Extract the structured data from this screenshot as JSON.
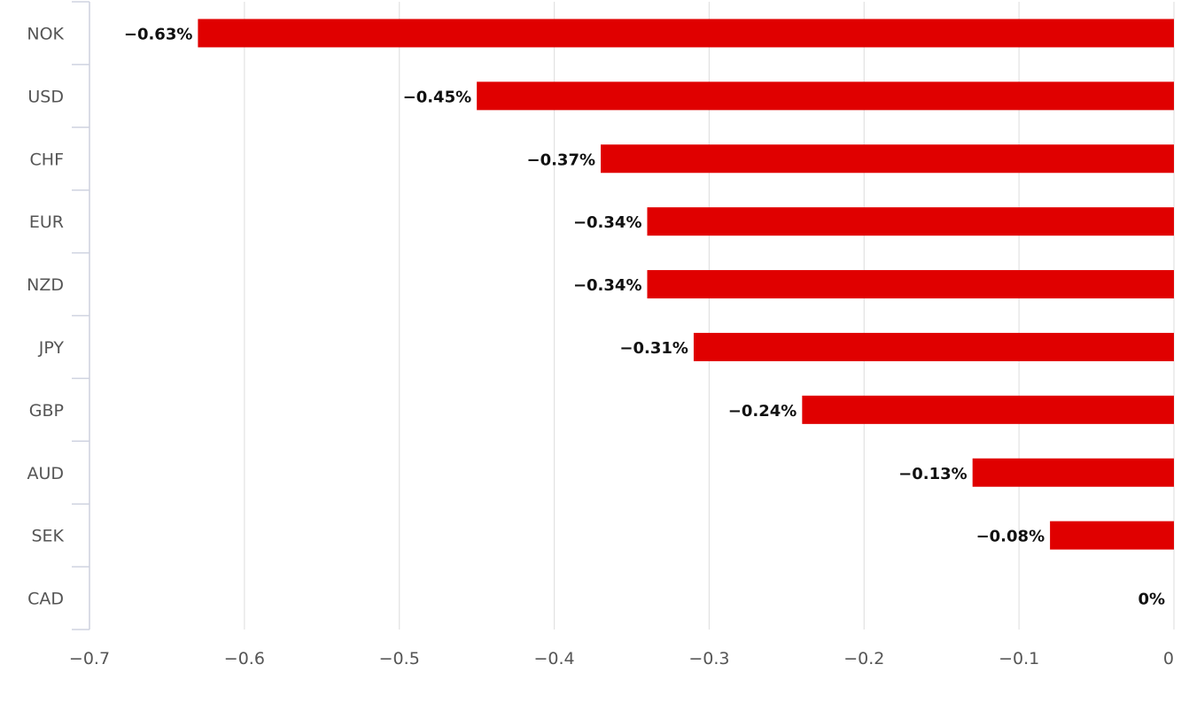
{
  "chart_data": {
    "type": "bar",
    "orientation": "horizontal",
    "categories": [
      "NOK",
      "USD",
      "CHF",
      "EUR",
      "NZD",
      "JPY",
      "GBP",
      "AUD",
      "SEK",
      "CAD"
    ],
    "values": [
      -0.63,
      -0.45,
      -0.37,
      -0.34,
      -0.34,
      -0.31,
      -0.24,
      -0.13,
      -0.08,
      0
    ],
    "data_labels": [
      "−0.63%",
      "−0.45%",
      "−0.37%",
      "−0.34%",
      "−0.34%",
      "−0.31%",
      "−0.24%",
      "−0.13%",
      "−0.08%",
      "0%"
    ],
    "xlim": [
      -0.7,
      0
    ],
    "x_ticks": [
      -0.7,
      -0.6,
      -0.5,
      -0.4,
      -0.3,
      -0.2,
      -0.1,
      0
    ],
    "x_tick_labels": [
      "−0.7",
      "−0.6",
      "−0.5",
      "−0.4",
      "−0.3",
      "−0.2",
      "−0.1",
      "0"
    ],
    "grid": true,
    "legend": "none",
    "title": "",
    "xlabel": "",
    "ylabel": "",
    "colors": {
      "bar": "#e00000",
      "grid": "#e2e2e2",
      "axis": "#cfd3e0",
      "tick_text": "#555555",
      "label_text": "#111111"
    }
  }
}
